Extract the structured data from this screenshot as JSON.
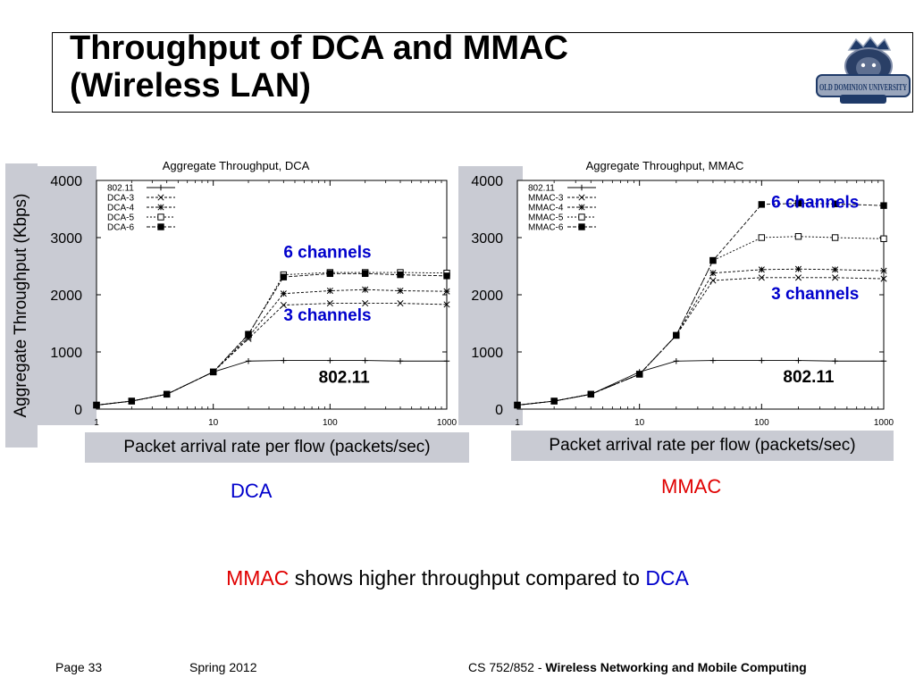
{
  "slide": {
    "title_line1": "Throughput of DCA and MMAC",
    "title_line2": "(Wireless LAN)",
    "logo_text": "OLD DOMINION UNIVERSITY",
    "ylabel": "Aggregate Throughput (Kbps)",
    "caption_dca": "DCA",
    "caption_mmac": "MMAC",
    "conclusion": {
      "part1": "MMAC",
      "part2": " shows higher throughput compared to ",
      "part3": "DCA"
    },
    "footer": {
      "page": "Page 33",
      "term": "Spring 2012",
      "course_prefix": "CS 752/852 - ",
      "course_name": "Wireless Networking and Mobile Computing"
    },
    "colors": {
      "red": "#e00000",
      "blue": "#0000cc",
      "panel": "#c9cbd3"
    }
  },
  "chart_data": [
    {
      "type": "line",
      "title": "Aggregate Throughput, DCA",
      "xlabel": "Packet arrival rate per flow (packets/sec)",
      "ylabel": "Aggregate Throughput (Kbps)",
      "xscale": "log",
      "xlim": [
        1,
        1000
      ],
      "ylim": [
        0,
        4000
      ],
      "xticks": [
        1,
        10,
        100,
        1000
      ],
      "xtick_labels": [
        "1",
        "10",
        "100",
        "1000"
      ],
      "yticks": [
        0,
        1000,
        2000,
        3000,
        4000
      ],
      "ytick_labels": [
        "0",
        "1000",
        "2000",
        "3000",
        "4000"
      ],
      "x": [
        1,
        2,
        4,
        10,
        20,
        40,
        100,
        200,
        400,
        1000
      ],
      "legend_position": "top-left",
      "series": [
        {
          "name": "802.11",
          "marker": "plus",
          "dash": "",
          "values": [
            70,
            140,
            260,
            650,
            840,
            850,
            850,
            850,
            840,
            840
          ]
        },
        {
          "name": "DCA-3",
          "marker": "x",
          "dash": "3,2",
          "values": [
            70,
            140,
            260,
            650,
            1230,
            1820,
            1850,
            1850,
            1850,
            1830
          ]
        },
        {
          "name": "DCA-4",
          "marker": "star",
          "dash": "3,2",
          "values": [
            70,
            140,
            260,
            650,
            1260,
            2020,
            2070,
            2090,
            2070,
            2060
          ]
        },
        {
          "name": "DCA-5",
          "marker": "square-open",
          "dash": "2,2",
          "values": [
            70,
            140,
            260,
            650,
            1300,
            2350,
            2390,
            2390,
            2390,
            2380
          ]
        },
        {
          "name": "DCA-6",
          "marker": "square-filled",
          "dash": "4,2",
          "values": [
            70,
            140,
            260,
            650,
            1310,
            2310,
            2370,
            2370,
            2350,
            2330
          ]
        }
      ],
      "annotations": [
        {
          "text": "6 channels",
          "color": "#0000cc",
          "x": 40,
          "y": 2650
        },
        {
          "text": "3 channels",
          "color": "#0000cc",
          "x": 40,
          "y": 1550
        },
        {
          "text": "802.11",
          "color": "#000000",
          "x": 80,
          "y": 460
        }
      ]
    },
    {
      "type": "line",
      "title": "Aggregate Throughput, MMAC",
      "xlabel": "Packet arrival rate per flow (packets/sec)",
      "ylabel": "Aggregate Throughput (Kbps)",
      "xscale": "log",
      "xlim": [
        1,
        1000
      ],
      "ylim": [
        0,
        4000
      ],
      "xticks": [
        1,
        10,
        100,
        1000
      ],
      "xtick_labels": [
        "1",
        "10",
        "100",
        "1000"
      ],
      "yticks": [
        0,
        1000,
        2000,
        3000,
        4000
      ],
      "ytick_labels": [
        "0",
        "1000",
        "2000",
        "3000",
        "4000"
      ],
      "x": [
        1,
        2,
        4,
        10,
        20,
        40,
        100,
        200,
        400,
        1000
      ],
      "legend_position": "top-left",
      "series": [
        {
          "name": "802.11",
          "marker": "plus",
          "dash": "",
          "values": [
            70,
            140,
            260,
            650,
            840,
            850,
            850,
            850,
            840,
            840
          ]
        },
        {
          "name": "MMAC-3",
          "marker": "x",
          "dash": "3,2",
          "values": [
            70,
            140,
            260,
            610,
            1290,
            2250,
            2300,
            2300,
            2300,
            2280
          ]
        },
        {
          "name": "MMAC-4",
          "marker": "star",
          "dash": "3,2",
          "values": [
            70,
            140,
            260,
            610,
            1290,
            2380,
            2440,
            2450,
            2440,
            2420
          ]
        },
        {
          "name": "MMAC-5",
          "marker": "square-open",
          "dash": "2,2",
          "values": [
            70,
            140,
            260,
            610,
            1290,
            2600,
            3000,
            3020,
            3000,
            2980
          ]
        },
        {
          "name": "MMAC-6",
          "marker": "square-filled",
          "dash": "4,2",
          "values": [
            70,
            140,
            260,
            610,
            1290,
            2600,
            3580,
            3600,
            3590,
            3560
          ]
        }
      ],
      "annotations": [
        {
          "text": "6 channels",
          "color": "#0000cc",
          "x": 120,
          "y": 3520
        },
        {
          "text": "3 channels",
          "color": "#0000cc",
          "x": 120,
          "y": 1920
        },
        {
          "text": "802.11",
          "color": "#000000",
          "x": 150,
          "y": 470
        }
      ]
    }
  ]
}
